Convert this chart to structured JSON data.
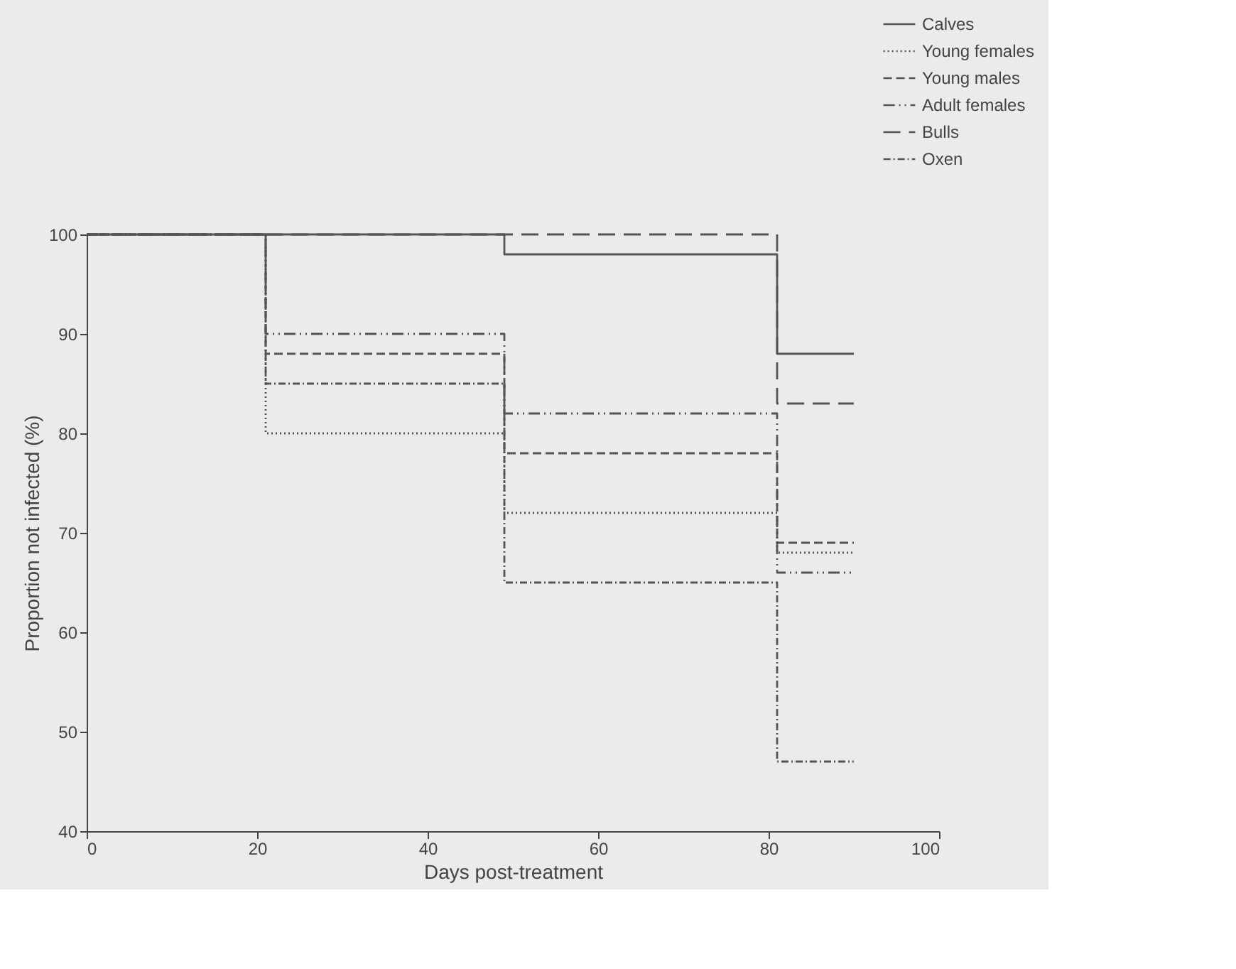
{
  "chart_data": {
    "type": "step",
    "xlabel": "Days post-treatment",
    "ylabel": "Proportion not infected (%)",
    "x": [
      0,
      21,
      49,
      81,
      90
    ],
    "series": [
      {
        "name": "Calves",
        "color": "#555555",
        "line_style": "solid",
        "values": [
          100,
          100,
          98,
          88,
          88
        ]
      },
      {
        "name": "Young females",
        "color": "#555555",
        "line_style": "dotted",
        "values": [
          100,
          80,
          72,
          68,
          68
        ]
      },
      {
        "name": "Young males",
        "color": "#555555",
        "line_style": "dashed",
        "values": [
          100,
          88,
          78,
          69,
          69
        ]
      },
      {
        "name": "Adult females",
        "color": "#555555",
        "line_style": "dashdotdot",
        "values": [
          100,
          90,
          82,
          66,
          66
        ]
      },
      {
        "name": "Bulls",
        "color": "#555555",
        "line_style": "longdashed",
        "values": [
          100,
          100,
          100,
          83,
          83
        ]
      },
      {
        "name": "Oxen",
        "color": "#555555",
        "line_style": "dashdot",
        "values": [
          100,
          85,
          65,
          47,
          47
        ]
      }
    ],
    "xlim": [
      0,
      100
    ],
    "xticks": [
      0,
      20,
      40,
      60,
      80,
      100
    ],
    "ylim": [
      40,
      100
    ],
    "yticks": [
      40,
      50,
      60,
      70,
      80,
      90,
      100
    ],
    "grid": false,
    "legend": "top right"
  }
}
